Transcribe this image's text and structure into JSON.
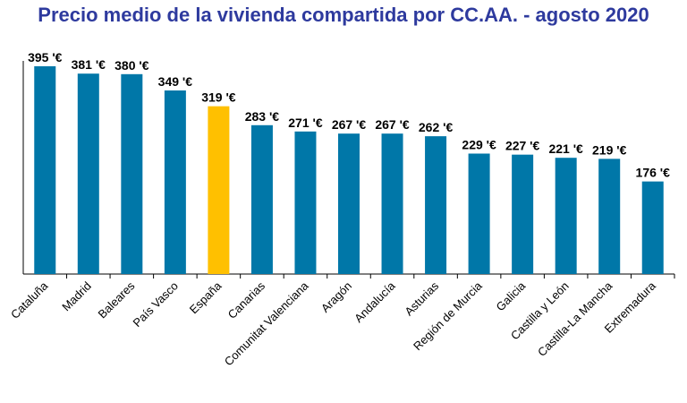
{
  "chart_data": {
    "type": "bar",
    "title": "Precio medio de la vivienda compartida por CC.AA. - agosto 2020",
    "xlabel": "",
    "ylabel": "",
    "ylim": [
      0,
      395
    ],
    "grid": false,
    "legend": "none",
    "value_suffix": " '€",
    "categories": [
      "Cataluña",
      "Madrid",
      "Baleares",
      "País Vasco",
      "España",
      "Canarias",
      "Comunitat Valenciana",
      "Aragón",
      "Andalucía",
      "Asturias",
      "Región de Murcia",
      "Galicia",
      "Castilla y León",
      "Castilla-La Mancha",
      "Extremadura"
    ],
    "values": [
      395,
      381,
      380,
      349,
      319,
      283,
      271,
      267,
      267,
      262,
      229,
      227,
      221,
      219,
      176
    ],
    "data_labels": [
      "395 '€",
      "381 '€",
      "380 '€",
      "349 '€",
      "319 '€",
      "283 '€",
      "271 '€",
      "267 '€",
      "267 '€",
      "262 '€",
      "229 '€",
      "227 '€",
      "221 '€",
      "219 '€",
      "176 '€"
    ],
    "bar_color": "#0077A8",
    "highlight_category": "España",
    "highlight_color": "#FFC000",
    "title_color": "#2E3A9E",
    "axis_color": "#000000"
  }
}
